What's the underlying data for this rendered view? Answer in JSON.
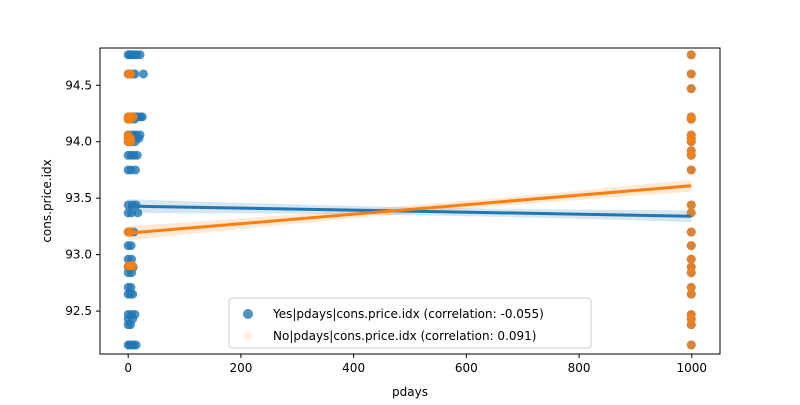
{
  "chart_data": {
    "type": "scatter",
    "title": "",
    "xlabel": "pdays",
    "ylabel": "cons.price.idx",
    "xlim": [
      -50,
      1050
    ],
    "ylim": [
      92.12,
      94.83
    ],
    "x_ticks": [
      0,
      200,
      400,
      600,
      800,
      1000
    ],
    "y_ticks": [
      92.5,
      93.0,
      93.5,
      94.0,
      94.5
    ],
    "x_tick_labels": [
      "0",
      "200",
      "400",
      "600",
      "800",
      "1000"
    ],
    "y_tick_labels": [
      "92.5",
      "93.0",
      "93.5",
      "94.0",
      "94.5"
    ],
    "grid": false,
    "legend_position": "lower-center",
    "series": [
      {
        "name": "Yes|pdays|cons.price.idx (correlation: -0.055)",
        "color": "#1f77b4",
        "points": [
          [
            0,
            94.77
          ],
          [
            3,
            94.77
          ],
          [
            6,
            94.77
          ],
          [
            10,
            94.77
          ],
          [
            15,
            94.77
          ],
          [
            21,
            94.77
          ],
          [
            0,
            94.6
          ],
          [
            4,
            94.6
          ],
          [
            8,
            94.6
          ],
          [
            12,
            94.6
          ],
          [
            27,
            94.6
          ],
          [
            0,
            94.22
          ],
          [
            3,
            94.22
          ],
          [
            6,
            94.22
          ],
          [
            9,
            94.22
          ],
          [
            13,
            94.22
          ],
          [
            17,
            94.22
          ],
          [
            22,
            94.22
          ],
          [
            25,
            94.22
          ],
          [
            0,
            94.2
          ],
          [
            5,
            94.2
          ],
          [
            11,
            94.2
          ],
          [
            0,
            94.06
          ],
          [
            4,
            94.06
          ],
          [
            9,
            94.06
          ],
          [
            14,
            94.06
          ],
          [
            21,
            94.06
          ],
          [
            0,
            94.03
          ],
          [
            3,
            94.03
          ],
          [
            7,
            94.03
          ],
          [
            13,
            94.03
          ],
          [
            19,
            94.03
          ],
          [
            0,
            94.0
          ],
          [
            6,
            94.0
          ],
          [
            12,
            94.0
          ],
          [
            0,
            93.88
          ],
          [
            5,
            93.88
          ],
          [
            10,
            93.88
          ],
          [
            16,
            93.88
          ],
          [
            0,
            93.75
          ],
          [
            5,
            93.75
          ],
          [
            13,
            93.75
          ],
          [
            0,
            93.44
          ],
          [
            8,
            93.44
          ],
          [
            14,
            93.44
          ],
          [
            0,
            93.37
          ],
          [
            6,
            93.37
          ],
          [
            17,
            93.37
          ],
          [
            0,
            93.2
          ],
          [
            4,
            93.2
          ],
          [
            10,
            93.2
          ],
          [
            0,
            93.08
          ],
          [
            5,
            93.08
          ],
          [
            0,
            92.96
          ],
          [
            6,
            92.96
          ],
          [
            0,
            92.89
          ],
          [
            4,
            92.89
          ],
          [
            9,
            92.89
          ],
          [
            0,
            92.84
          ],
          [
            6,
            92.84
          ],
          [
            0,
            92.71
          ],
          [
            5,
            92.71
          ],
          [
            0,
            92.65
          ],
          [
            4,
            92.65
          ],
          [
            8,
            92.65
          ],
          [
            0,
            92.47
          ],
          [
            6,
            92.47
          ],
          [
            12,
            92.47
          ],
          [
            0,
            92.43
          ],
          [
            8,
            92.43
          ],
          [
            0,
            92.38
          ],
          [
            4,
            92.38
          ],
          [
            0,
            92.2
          ],
          [
            3,
            92.2
          ],
          [
            6,
            92.2
          ],
          [
            10,
            92.2
          ],
          [
            14,
            92.2
          ],
          [
            999,
            94.77
          ],
          [
            999,
            94.6
          ],
          [
            999,
            94.47
          ],
          [
            999,
            94.22
          ],
          [
            999,
            94.2
          ],
          [
            999,
            94.06
          ],
          [
            999,
            94.03
          ],
          [
            999,
            94.0
          ],
          [
            999,
            93.92
          ],
          [
            999,
            93.88
          ],
          [
            999,
            93.75
          ],
          [
            999,
            93.44
          ],
          [
            999,
            93.37
          ],
          [
            999,
            93.2
          ],
          [
            999,
            93.08
          ],
          [
            999,
            92.96
          ],
          [
            999,
            92.89
          ],
          [
            999,
            92.84
          ],
          [
            999,
            92.71
          ],
          [
            999,
            92.65
          ],
          [
            999,
            92.47
          ],
          [
            999,
            92.43
          ],
          [
            999,
            92.38
          ],
          [
            999,
            92.2
          ]
        ],
        "regression": {
          "x": [
            0,
            999
          ],
          "y": [
            93.43,
            93.34
          ]
        }
      },
      {
        "name": "No|pdays|cons.price.idx (correlation: 0.091)",
        "color": "#ff7f0e",
        "points": [
          [
            0,
            94.6
          ],
          [
            5,
            94.6
          ],
          [
            0,
            94.22
          ],
          [
            4,
            94.22
          ],
          [
            9,
            94.22
          ],
          [
            0,
            94.2
          ],
          [
            3,
            94.2
          ],
          [
            0,
            94.06
          ],
          [
            0,
            94.03
          ],
          [
            4,
            94.03
          ],
          [
            0,
            94.0
          ],
          [
            5,
            94.0
          ],
          [
            0,
            93.2
          ],
          [
            4,
            93.2
          ],
          [
            0,
            92.9
          ],
          [
            4,
            92.9
          ],
          [
            8,
            92.9
          ],
          [
            999,
            94.77
          ],
          [
            999,
            94.6
          ],
          [
            999,
            94.47
          ],
          [
            999,
            94.22
          ],
          [
            999,
            94.2
          ],
          [
            999,
            94.06
          ],
          [
            999,
            94.03
          ],
          [
            999,
            94.0
          ],
          [
            999,
            93.92
          ],
          [
            999,
            93.88
          ],
          [
            999,
            93.75
          ],
          [
            999,
            93.44
          ],
          [
            999,
            93.37
          ],
          [
            999,
            93.2
          ],
          [
            999,
            93.08
          ],
          [
            999,
            92.96
          ],
          [
            999,
            92.89
          ],
          [
            999,
            92.84
          ],
          [
            999,
            92.71
          ],
          [
            999,
            92.65
          ],
          [
            999,
            92.47
          ],
          [
            999,
            92.43
          ],
          [
            999,
            92.38
          ],
          [
            999,
            92.2
          ]
        ],
        "regression": {
          "x": [
            0,
            999
          ],
          "y": [
            93.19,
            93.61
          ]
        }
      }
    ]
  }
}
